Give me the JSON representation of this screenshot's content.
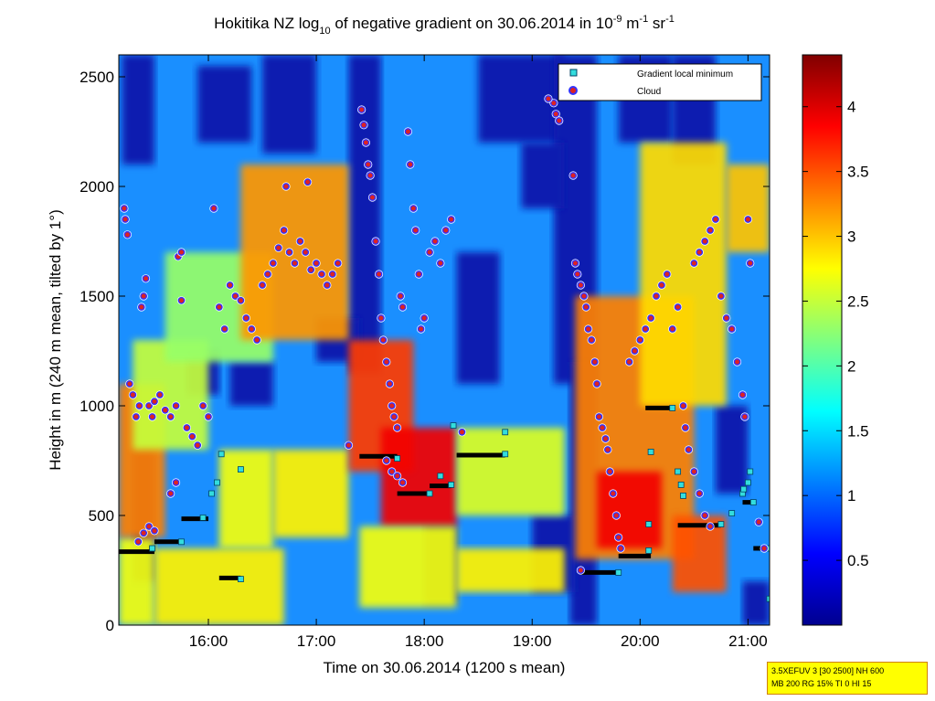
{
  "chart_data": {
    "type": "heatmap",
    "title": {
      "pre": "Hokitika NZ log",
      "sub": "10",
      "mid": " of negative gradient on 30.06.2014 in 10",
      "sup1": "-9",
      "mid2": " m",
      "sup2": "-1",
      "mid3": " sr",
      "sup3": "-1"
    },
    "xlabel": "Time on 30.06.2014 (1200 s mean)",
    "ylabel": "Height in m (240 m mean, tilted by 1°)",
    "x_range_hours": [
      15.17,
      21.2
    ],
    "ylim": [
      0,
      2600
    ],
    "x_ticks": [
      {
        "value": 16,
        "label": "16:00"
      },
      {
        "value": 17,
        "label": "17:00"
      },
      {
        "value": 18,
        "label": "18:00"
      },
      {
        "value": 19,
        "label": "19:00"
      },
      {
        "value": 20,
        "label": "20:00"
      },
      {
        "value": 21,
        "label": "21:00"
      }
    ],
    "y_ticks": [
      {
        "value": 0,
        "label": "0"
      },
      {
        "value": 500,
        "label": "500"
      },
      {
        "value": 1000,
        "label": "1000"
      },
      {
        "value": 1500,
        "label": "1500"
      },
      {
        "value": 2000,
        "label": "2000"
      },
      {
        "value": 2500,
        "label": "2500"
      }
    ],
    "colorbar": {
      "colormap": "jet",
      "range": [
        0,
        4.4
      ],
      "ticks": [
        {
          "value": 0.5,
          "label": "0.5"
        },
        {
          "value": 1,
          "label": "1"
        },
        {
          "value": 1.5,
          "label": "1.5"
        },
        {
          "value": 2,
          "label": "2"
        },
        {
          "value": 2.5,
          "label": "2.5"
        },
        {
          "value": 3,
          "label": "3"
        },
        {
          "value": 3.5,
          "label": "3.5"
        },
        {
          "value": 4,
          "label": "4"
        }
      ]
    },
    "legend": {
      "position": "top-right",
      "entries": [
        {
          "label": "Gradient local minimum",
          "marker": "cyan square",
          "color": "#33dddd"
        },
        {
          "label": "Cloud",
          "marker": "red dot with blue ring",
          "color": "#dd2222"
        }
      ]
    },
    "heatmap_bands": [
      {
        "t0": 15.17,
        "t1": 15.5,
        "h0": 0,
        "h1": 400,
        "value": 2.7
      },
      {
        "t0": 15.17,
        "t1": 15.6,
        "h0": 400,
        "h1": 1100,
        "value": 3.3
      },
      {
        "t0": 15.3,
        "t1": 16.0,
        "h0": 800,
        "h1": 1300,
        "value": 2.5
      },
      {
        "t0": 15.5,
        "t1": 16.7,
        "h0": 0,
        "h1": 350,
        "value": 2.8
      },
      {
        "t0": 16.1,
        "t1": 16.6,
        "h0": 350,
        "h1": 800,
        "value": 2.7
      },
      {
        "t0": 15.6,
        "t1": 16.6,
        "h0": 1200,
        "h1": 1700,
        "value": 2.3
      },
      {
        "t0": 16.3,
        "t1": 17.3,
        "h0": 1300,
        "h1": 2100,
        "value": 3.2
      },
      {
        "t0": 16.6,
        "t1": 17.3,
        "h0": 400,
        "h1": 800,
        "value": 2.8
      },
      {
        "t0": 17.3,
        "t1": 17.9,
        "h0": 700,
        "h1": 1300,
        "value": 3.6
      },
      {
        "t0": 17.6,
        "t1": 18.3,
        "h0": 450,
        "h1": 900,
        "value": 3.9
      },
      {
        "t0": 17.4,
        "t1": 18.3,
        "h0": 80,
        "h1": 450,
        "value": 2.7
      },
      {
        "t0": 18.3,
        "t1": 19.3,
        "h0": 150,
        "h1": 350,
        "value": 2.8
      },
      {
        "t0": 18.3,
        "t1": 19.3,
        "h0": 500,
        "h1": 900,
        "value": 2.6
      },
      {
        "t0": 19.4,
        "t1": 20.5,
        "h0": 300,
        "h1": 1500,
        "value": 3.3
      },
      {
        "t0": 19.6,
        "t1": 20.2,
        "h0": 350,
        "h1": 700,
        "value": 3.9
      },
      {
        "t0": 20.3,
        "t1": 20.8,
        "h0": 150,
        "h1": 500,
        "value": 3.5
      },
      {
        "t0": 20.0,
        "t1": 20.8,
        "h0": 1000,
        "h1": 2200,
        "value": 2.9
      },
      {
        "t0": 20.8,
        "t1": 21.2,
        "h0": 1700,
        "h1": 2100,
        "value": 3.0
      }
    ],
    "gradient_minimum_segments": [
      {
        "t0": 15.17,
        "t1": 15.5,
        "h": 335
      },
      {
        "t0": 15.5,
        "t1": 15.75,
        "h": 380
      },
      {
        "t0": 15.75,
        "t1": 16.0,
        "h": 485
      },
      {
        "t0": 16.1,
        "t1": 16.3,
        "h": 215
      },
      {
        "t0": 17.4,
        "t1": 17.75,
        "h": 770
      },
      {
        "t0": 17.75,
        "t1": 18.05,
        "h": 600
      },
      {
        "t0": 18.05,
        "t1": 18.25,
        "h": 635
      },
      {
        "t0": 18.3,
        "t1": 18.75,
        "h": 775
      },
      {
        "t0": 19.45,
        "t1": 19.8,
        "h": 240
      },
      {
        "t0": 19.8,
        "t1": 20.1,
        "h": 315
      },
      {
        "t0": 20.05,
        "t1": 20.3,
        "h": 990
      },
      {
        "t0": 20.35,
        "t1": 20.75,
        "h": 455
      },
      {
        "t0": 20.95,
        "t1": 21.05,
        "h": 560
      },
      {
        "t0": 21.05,
        "t1": 21.18,
        "h": 350
      }
    ],
    "gradient_minimum_points": [
      {
        "t": 15.48,
        "h": 350
      },
      {
        "t": 15.75,
        "h": 380
      },
      {
        "t": 15.95,
        "h": 490
      },
      {
        "t": 16.03,
        "h": 600
      },
      {
        "t": 16.08,
        "h": 650
      },
      {
        "t": 16.12,
        "h": 780
      },
      {
        "t": 16.3,
        "h": 710
      },
      {
        "t": 16.3,
        "h": 210
      },
      {
        "t": 17.75,
        "h": 760
      },
      {
        "t": 18.05,
        "h": 600
      },
      {
        "t": 18.15,
        "h": 680
      },
      {
        "t": 18.25,
        "h": 640
      },
      {
        "t": 18.27,
        "h": 910
      },
      {
        "t": 18.75,
        "h": 780
      },
      {
        "t": 18.75,
        "h": 880
      },
      {
        "t": 19.8,
        "h": 240
      },
      {
        "t": 20.08,
        "h": 340
      },
      {
        "t": 20.08,
        "h": 460
      },
      {
        "t": 20.1,
        "h": 790
      },
      {
        "t": 20.3,
        "h": 990
      },
      {
        "t": 20.35,
        "h": 700
      },
      {
        "t": 20.38,
        "h": 640
      },
      {
        "t": 20.4,
        "h": 590
      },
      {
        "t": 20.75,
        "h": 460
      },
      {
        "t": 20.85,
        "h": 510
      },
      {
        "t": 20.95,
        "h": 600
      },
      {
        "t": 20.96,
        "h": 620
      },
      {
        "t": 21.0,
        "h": 650
      },
      {
        "t": 21.02,
        "h": 700
      },
      {
        "t": 21.05,
        "h": 560
      },
      {
        "t": 21.18,
        "h": 350
      },
      {
        "t": 21.2,
        "h": 120
      }
    ],
    "cloud_points": [
      {
        "t": 15.22,
        "h": 1900
      },
      {
        "t": 15.23,
        "h": 1850
      },
      {
        "t": 15.25,
        "h": 1780
      },
      {
        "t": 15.27,
        "h": 1100
      },
      {
        "t": 15.3,
        "h": 1050
      },
      {
        "t": 15.33,
        "h": 950
      },
      {
        "t": 15.36,
        "h": 1000
      },
      {
        "t": 15.38,
        "h": 1450
      },
      {
        "t": 15.4,
        "h": 1500
      },
      {
        "t": 15.42,
        "h": 1580
      },
      {
        "t": 15.45,
        "h": 1000
      },
      {
        "t": 15.48,
        "h": 950
      },
      {
        "t": 15.5,
        "h": 1020
      },
      {
        "t": 15.55,
        "h": 1050
      },
      {
        "t": 15.6,
        "h": 980
      },
      {
        "t": 15.65,
        "h": 950
      },
      {
        "t": 15.7,
        "h": 1000
      },
      {
        "t": 15.72,
        "h": 1680
      },
      {
        "t": 15.75,
        "h": 1700
      },
      {
        "t": 15.75,
        "h": 1480
      },
      {
        "t": 15.8,
        "h": 900
      },
      {
        "t": 15.85,
        "h": 860
      },
      {
        "t": 15.9,
        "h": 820
      },
      {
        "t": 15.95,
        "h": 1000
      },
      {
        "t": 16.0,
        "h": 950
      },
      {
        "t": 16.05,
        "h": 1900
      },
      {
        "t": 16.1,
        "h": 1450
      },
      {
        "t": 16.15,
        "h": 1350
      },
      {
        "t": 16.2,
        "h": 1550
      },
      {
        "t": 16.25,
        "h": 1500
      },
      {
        "t": 16.3,
        "h": 1480
      },
      {
        "t": 16.35,
        "h": 1400
      },
      {
        "t": 16.4,
        "h": 1350
      },
      {
        "t": 16.45,
        "h": 1300
      },
      {
        "t": 16.5,
        "h": 1550
      },
      {
        "t": 16.55,
        "h": 1600
      },
      {
        "t": 16.6,
        "h": 1650
      },
      {
        "t": 16.65,
        "h": 1720
      },
      {
        "t": 16.7,
        "h": 1800
      },
      {
        "t": 16.72,
        "h": 2000
      },
      {
        "t": 16.75,
        "h": 1700
      },
      {
        "t": 16.8,
        "h": 1650
      },
      {
        "t": 16.85,
        "h": 1750
      },
      {
        "t": 16.9,
        "h": 1700
      },
      {
        "t": 16.92,
        "h": 2020
      },
      {
        "t": 16.95,
        "h": 1620
      },
      {
        "t": 17.0,
        "h": 1650
      },
      {
        "t": 17.05,
        "h": 1600
      },
      {
        "t": 17.1,
        "h": 1550
      },
      {
        "t": 17.15,
        "h": 1600
      },
      {
        "t": 17.2,
        "h": 1650
      },
      {
        "t": 17.3,
        "h": 820
      },
      {
        "t": 17.42,
        "h": 2350
      },
      {
        "t": 17.44,
        "h": 2280
      },
      {
        "t": 17.46,
        "h": 2200
      },
      {
        "t": 17.48,
        "h": 2100
      },
      {
        "t": 17.5,
        "h": 2050
      },
      {
        "t": 17.52,
        "h": 1950
      },
      {
        "t": 17.55,
        "h": 1750
      },
      {
        "t": 17.58,
        "h": 1600
      },
      {
        "t": 17.6,
        "h": 1400
      },
      {
        "t": 17.62,
        "h": 1300
      },
      {
        "t": 17.65,
        "h": 1200
      },
      {
        "t": 17.68,
        "h": 1100
      },
      {
        "t": 17.7,
        "h": 1000
      },
      {
        "t": 17.72,
        "h": 950
      },
      {
        "t": 17.75,
        "h": 900
      },
      {
        "t": 17.78,
        "h": 1500
      },
      {
        "t": 17.8,
        "h": 1450
      },
      {
        "t": 17.85,
        "h": 2250
      },
      {
        "t": 17.87,
        "h": 2100
      },
      {
        "t": 17.9,
        "h": 1900
      },
      {
        "t": 17.92,
        "h": 1800
      },
      {
        "t": 17.95,
        "h": 1600
      },
      {
        "t": 17.97,
        "h": 1350
      },
      {
        "t": 18.0,
        "h": 1400
      },
      {
        "t": 18.05,
        "h": 1700
      },
      {
        "t": 18.1,
        "h": 1750
      },
      {
        "t": 18.15,
        "h": 1650
      },
      {
        "t": 18.2,
        "h": 1800
      },
      {
        "t": 18.25,
        "h": 1850
      },
      {
        "t": 17.65,
        "h": 750
      },
      {
        "t": 17.7,
        "h": 700
      },
      {
        "t": 17.75,
        "h": 680
      },
      {
        "t": 17.8,
        "h": 650
      },
      {
        "t": 18.35,
        "h": 880
      },
      {
        "t": 19.2,
        "h": 2380
      },
      {
        "t": 19.22,
        "h": 2330
      },
      {
        "t": 19.25,
        "h": 2300
      },
      {
        "t": 19.38,
        "h": 2050
      },
      {
        "t": 19.4,
        "h": 1650
      },
      {
        "t": 19.42,
        "h": 1600
      },
      {
        "t": 19.45,
        "h": 1550
      },
      {
        "t": 19.48,
        "h": 1500
      },
      {
        "t": 19.5,
        "h": 1450
      },
      {
        "t": 19.52,
        "h": 1350
      },
      {
        "t": 19.55,
        "h": 1300
      },
      {
        "t": 19.58,
        "h": 1200
      },
      {
        "t": 19.6,
        "h": 1100
      },
      {
        "t": 19.62,
        "h": 950
      },
      {
        "t": 19.65,
        "h": 900
      },
      {
        "t": 19.68,
        "h": 850
      },
      {
        "t": 19.7,
        "h": 800
      },
      {
        "t": 19.72,
        "h": 700
      },
      {
        "t": 19.75,
        "h": 600
      },
      {
        "t": 19.78,
        "h": 500
      },
      {
        "t": 19.8,
        "h": 400
      },
      {
        "t": 19.82,
        "h": 350
      },
      {
        "t": 19.45,
        "h": 250
      },
      {
        "t": 19.9,
        "h": 1200
      },
      {
        "t": 19.95,
        "h": 1250
      },
      {
        "t": 20.0,
        "h": 1300
      },
      {
        "t": 20.05,
        "h": 1350
      },
      {
        "t": 20.1,
        "h": 1400
      },
      {
        "t": 20.15,
        "h": 1500
      },
      {
        "t": 20.2,
        "h": 1550
      },
      {
        "t": 20.25,
        "h": 1600
      },
      {
        "t": 20.3,
        "h": 1350
      },
      {
        "t": 20.35,
        "h": 1450
      },
      {
        "t": 20.4,
        "h": 1000
      },
      {
        "t": 20.42,
        "h": 900
      },
      {
        "t": 20.45,
        "h": 800
      },
      {
        "t": 20.5,
        "h": 1650
      },
      {
        "t": 20.55,
        "h": 1700
      },
      {
        "t": 20.6,
        "h": 1750
      },
      {
        "t": 20.65,
        "h": 1800
      },
      {
        "t": 20.7,
        "h": 1850
      },
      {
        "t": 20.75,
        "h": 1500
      },
      {
        "t": 20.8,
        "h": 1400
      },
      {
        "t": 20.85,
        "h": 1350
      },
      {
        "t": 20.9,
        "h": 1200
      },
      {
        "t": 20.95,
        "h": 1050
      },
      {
        "t": 20.97,
        "h": 950
      },
      {
        "t": 21.0,
        "h": 1850
      },
      {
        "t": 21.02,
        "h": 1650
      },
      {
        "t": 20.5,
        "h": 700
      },
      {
        "t": 20.55,
        "h": 600
      },
      {
        "t": 20.6,
        "h": 500
      },
      {
        "t": 20.65,
        "h": 450
      },
      {
        "t": 21.1,
        "h": 470
      },
      {
        "t": 21.15,
        "h": 350
      },
      {
        "t": 15.4,
        "h": 420
      },
      {
        "t": 15.45,
        "h": 450
      },
      {
        "t": 15.5,
        "h": 430
      },
      {
        "t": 15.35,
        "h": 380
      },
      {
        "t": 15.65,
        "h": 600
      },
      {
        "t": 15.7,
        "h": 650
      },
      {
        "t": 19.15,
        "h": 2400
      }
    ]
  },
  "info_box": {
    "line1": "3.5XEFUV 3 [30 2500] NH 600",
    "line2": "MB 200 RG 15% TI 0 HI 15"
  }
}
